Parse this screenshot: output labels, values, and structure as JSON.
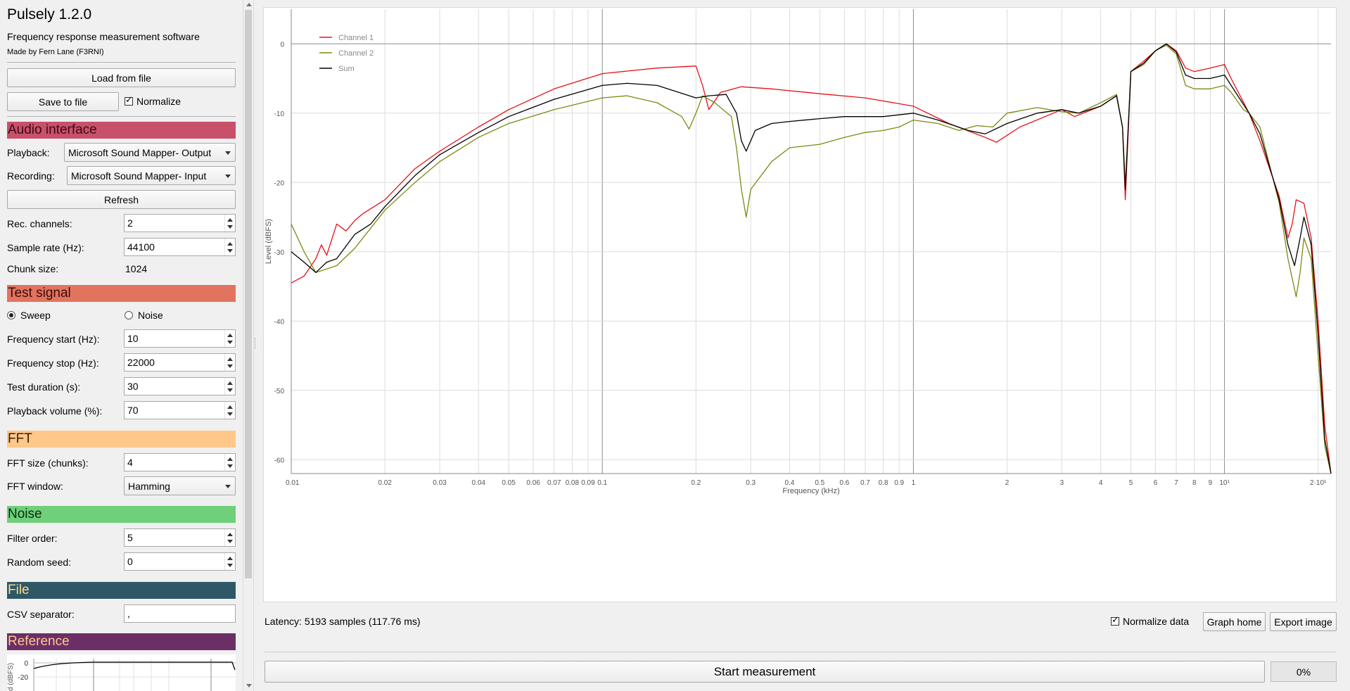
{
  "app": {
    "title": "Pulsely 1.2.0",
    "subtitle": "Frequency response measurement software",
    "author": "Made by Fern Lane (F3RNI)"
  },
  "file_buttons": {
    "load": "Load from file",
    "save": "Save to file",
    "normalize_label": "Normalize",
    "normalize_checked": true
  },
  "audio_interface": {
    "header": "Audio interface",
    "header_color": "#c9506a",
    "playback_label": "Playback:",
    "playback_value": "Microsoft Sound Mapper- Output",
    "recording_label": "Recording:",
    "recording_value": "Microsoft Sound Mapper- Input",
    "refresh": "Refresh",
    "rec_channels_label": "Rec. channels:",
    "rec_channels_value": "2",
    "sample_rate_label": "Sample rate (Hz):",
    "sample_rate_value": "44100",
    "chunk_size_label": "Chunk size:",
    "chunk_size_value": "1024"
  },
  "test_signal": {
    "header": "Test signal",
    "header_color": "#e2735e",
    "sweep_label": "Sweep",
    "noise_label": "Noise",
    "selected": "Sweep",
    "freq_start_label": "Frequency start (Hz):",
    "freq_start_value": "10",
    "freq_stop_label": "Frequency stop (Hz):",
    "freq_stop_value": "22000",
    "duration_label": "Test duration (s):",
    "duration_value": "30",
    "volume_label": "Playback volume (%):",
    "volume_value": "70"
  },
  "fft": {
    "header": "FFT",
    "header_color": "#ffc78a",
    "size_label": "FFT size (chunks):",
    "size_value": "4",
    "window_label": "FFT window:",
    "window_value": "Hamming"
  },
  "noise": {
    "header": "Noise",
    "header_color": "#6fcf7a",
    "filter_label": "Filter order:",
    "filter_value": "5",
    "seed_label": "Random seed:",
    "seed_value": "0"
  },
  "file_section": {
    "header": "File",
    "header_color": "#2e5867",
    "header_text_color": "#ffd98a",
    "csv_label": "CSV separator:",
    "csv_value": ","
  },
  "reference": {
    "header": "Reference",
    "header_color": "#6b2f66",
    "header_text_color": "#ffc78a",
    "ylabel": "d (dBFS)",
    "tick_0": "0",
    "tick_20": "-20"
  },
  "bottom": {
    "latency": "Latency: 5193 samples (117.76 ms)",
    "normalize_data": "Normalize data",
    "normalize_data_checked": true,
    "graph_home": "Graph home",
    "export_image": "Export image",
    "start": "Start measurement",
    "progress": "0%",
    "progress_value": 0
  },
  "chart_data": {
    "type": "line",
    "xlabel": "Frequency (kHz)",
    "ylabel": "Level (dBFS)",
    "x_scale": "log",
    "xlim": [
      0.01,
      22
    ],
    "ylim": [
      -62,
      5
    ],
    "grid": true,
    "legend_position": "top-left",
    "x_tick_labels": [
      {
        "x": 0.01,
        "label": "0.01"
      },
      {
        "x": 0.02,
        "label": "0.02"
      },
      {
        "x": 0.03,
        "label": "0.03"
      },
      {
        "x": 0.04,
        "label": "0.04"
      },
      {
        "x": 0.05,
        "label": "0.05"
      },
      {
        "x": 0.06,
        "label": "0.06"
      },
      {
        "x": 0.07,
        "label": "0.07"
      },
      {
        "x": 0.08,
        "label": "0.08"
      },
      {
        "x": 0.09,
        "label": "0.09"
      },
      {
        "x": 0.1,
        "label": "0.1"
      },
      {
        "x": 0.2,
        "label": "0.2"
      },
      {
        "x": 0.3,
        "label": "0.3"
      },
      {
        "x": 0.4,
        "label": "0.4"
      },
      {
        "x": 0.5,
        "label": "0.5"
      },
      {
        "x": 0.6,
        "label": "0.6"
      },
      {
        "x": 0.7,
        "label": "0.7"
      },
      {
        "x": 0.8,
        "label": "0.8"
      },
      {
        "x": 0.9,
        "label": "0.9"
      },
      {
        "x": 1,
        "label": "1"
      },
      {
        "x": 2,
        "label": "2"
      },
      {
        "x": 3,
        "label": "3"
      },
      {
        "x": 4,
        "label": "4"
      },
      {
        "x": 5,
        "label": "5"
      },
      {
        "x": 6,
        "label": "6"
      },
      {
        "x": 7,
        "label": "7"
      },
      {
        "x": 8,
        "label": "8"
      },
      {
        "x": 9,
        "label": "9"
      },
      {
        "x": 10,
        "label": "10¹"
      },
      {
        "x": 20,
        "label": "2·10¹"
      }
    ],
    "y_ticks": [
      0,
      -10,
      -20,
      -30,
      -40,
      -50,
      -60
    ],
    "series": [
      {
        "name": "Channel 1",
        "color": "#e8101a",
        "points": [
          [
            0.01,
            -34.5
          ],
          [
            0.011,
            -33.5
          ],
          [
            0.012,
            -31
          ],
          [
            0.0125,
            -29
          ],
          [
            0.013,
            -30.5
          ],
          [
            0.014,
            -26
          ],
          [
            0.015,
            -27
          ],
          [
            0.016,
            -25.5
          ],
          [
            0.017,
            -24.5
          ],
          [
            0.02,
            -22.5
          ],
          [
            0.025,
            -18
          ],
          [
            0.03,
            -15.5
          ],
          [
            0.04,
            -12
          ],
          [
            0.05,
            -9.5
          ],
          [
            0.07,
            -6.5
          ],
          [
            0.1,
            -4.3
          ],
          [
            0.15,
            -3.5
          ],
          [
            0.2,
            -3.2
          ],
          [
            0.21,
            -6
          ],
          [
            0.22,
            -9.5
          ],
          [
            0.24,
            -7
          ],
          [
            0.28,
            -6.2
          ],
          [
            0.35,
            -6.5
          ],
          [
            0.5,
            -7.2
          ],
          [
            0.7,
            -7.8
          ],
          [
            1,
            -9
          ],
          [
            1.3,
            -11.5
          ],
          [
            1.7,
            -13.5
          ],
          [
            1.85,
            -14.2
          ],
          [
            2.2,
            -12
          ],
          [
            3,
            -9.5
          ],
          [
            3.3,
            -10.5
          ],
          [
            4,
            -9
          ],
          [
            4.5,
            -7.5
          ],
          [
            4.7,
            -12
          ],
          [
            4.8,
            -22.5
          ],
          [
            5,
            -4
          ],
          [
            5.5,
            -2.5
          ],
          [
            6,
            -1
          ],
          [
            6.5,
            0
          ],
          [
            7,
            -1
          ],
          [
            7.5,
            -3.5
          ],
          [
            8,
            -4
          ],
          [
            9,
            -3.5
          ],
          [
            10,
            -3
          ],
          [
            10.5,
            -5
          ],
          [
            12,
            -10
          ],
          [
            13,
            -14
          ],
          [
            15,
            -22
          ],
          [
            16,
            -28
          ],
          [
            16.5,
            -26
          ],
          [
            17,
            -22.5
          ],
          [
            18,
            -23
          ],
          [
            19,
            -28
          ],
          [
            20,
            -40
          ],
          [
            21,
            -55
          ],
          [
            22,
            -62
          ]
        ]
      },
      {
        "name": "Channel 2",
        "color": "#7d8a10",
        "points": [
          [
            0.01,
            -26
          ],
          [
            0.011,
            -30
          ],
          [
            0.012,
            -33
          ],
          [
            0.014,
            -32
          ],
          [
            0.016,
            -29.5
          ],
          [
            0.02,
            -24
          ],
          [
            0.025,
            -20
          ],
          [
            0.03,
            -17
          ],
          [
            0.04,
            -13.5
          ],
          [
            0.05,
            -11.5
          ],
          [
            0.07,
            -9.5
          ],
          [
            0.1,
            -7.8
          ],
          [
            0.12,
            -7.5
          ],
          [
            0.15,
            -8.5
          ],
          [
            0.18,
            -10.5
          ],
          [
            0.19,
            -12.3
          ],
          [
            0.2,
            -10
          ],
          [
            0.21,
            -7.5
          ],
          [
            0.23,
            -8.5
          ],
          [
            0.26,
            -10.5
          ],
          [
            0.27,
            -15
          ],
          [
            0.28,
            -21
          ],
          [
            0.29,
            -25
          ],
          [
            0.3,
            -21
          ],
          [
            0.35,
            -17
          ],
          [
            0.4,
            -15
          ],
          [
            0.5,
            -14.5
          ],
          [
            0.6,
            -13.5
          ],
          [
            0.7,
            -12.8
          ],
          [
            0.8,
            -12.5
          ],
          [
            0.9,
            -12
          ],
          [
            1,
            -11
          ],
          [
            1.2,
            -11.5
          ],
          [
            1.4,
            -12.5
          ],
          [
            1.6,
            -11.8
          ],
          [
            1.8,
            -12
          ],
          [
            2,
            -10
          ],
          [
            2.5,
            -9.2
          ],
          [
            3,
            -9.8
          ],
          [
            3.4,
            -10
          ],
          [
            4,
            -8.5
          ],
          [
            4.5,
            -7.3
          ],
          [
            4.7,
            -12
          ],
          [
            4.8,
            -20.5
          ],
          [
            5,
            -4
          ],
          [
            5.5,
            -3
          ],
          [
            6,
            -1
          ],
          [
            6.5,
            -0.2
          ],
          [
            7,
            -1.5
          ],
          [
            7.5,
            -6
          ],
          [
            8,
            -6.5
          ],
          [
            9,
            -6.5
          ],
          [
            10,
            -6
          ],
          [
            10.5,
            -7
          ],
          [
            11.5,
            -9.5
          ],
          [
            12,
            -10
          ],
          [
            13,
            -12
          ],
          [
            15,
            -23
          ],
          [
            16,
            -31
          ],
          [
            17,
            -36.5
          ],
          [
            17.5,
            -33
          ],
          [
            18,
            -28
          ],
          [
            19,
            -31
          ],
          [
            20,
            -45
          ],
          [
            21,
            -58
          ],
          [
            22,
            -62
          ]
        ]
      },
      {
        "name": "Sum",
        "color": "#000000",
        "points": [
          [
            0.01,
            -30
          ],
          [
            0.011,
            -31.5
          ],
          [
            0.012,
            -33
          ],
          [
            0.013,
            -31.5
          ],
          [
            0.014,
            -31
          ],
          [
            0.016,
            -27.5
          ],
          [
            0.018,
            -26
          ],
          [
            0.02,
            -23.5
          ],
          [
            0.025,
            -19
          ],
          [
            0.03,
            -16
          ],
          [
            0.04,
            -12.8
          ],
          [
            0.05,
            -10.5
          ],
          [
            0.07,
            -8
          ],
          [
            0.1,
            -6
          ],
          [
            0.12,
            -5.7
          ],
          [
            0.15,
            -6
          ],
          [
            0.2,
            -7.8
          ],
          [
            0.22,
            -7.5
          ],
          [
            0.25,
            -7.3
          ],
          [
            0.27,
            -10
          ],
          [
            0.28,
            -14
          ],
          [
            0.29,
            -15.5
          ],
          [
            0.31,
            -12.5
          ],
          [
            0.35,
            -11.5
          ],
          [
            0.4,
            -11.2
          ],
          [
            0.5,
            -10.8
          ],
          [
            0.6,
            -10.5
          ],
          [
            0.7,
            -10.5
          ],
          [
            0.8,
            -10.5
          ],
          [
            1,
            -10
          ],
          [
            1.2,
            -11
          ],
          [
            1.5,
            -12.5
          ],
          [
            1.7,
            -13
          ],
          [
            2,
            -11.5
          ],
          [
            2.5,
            -10
          ],
          [
            3,
            -9.5
          ],
          [
            3.4,
            -10
          ],
          [
            4,
            -9
          ],
          [
            4.5,
            -7.5
          ],
          [
            4.7,
            -12
          ],
          [
            4.8,
            -21
          ],
          [
            5,
            -4
          ],
          [
            5.5,
            -2.8
          ],
          [
            6,
            -1
          ],
          [
            6.5,
            0
          ],
          [
            7,
            -1.2
          ],
          [
            7.5,
            -4.5
          ],
          [
            8,
            -5
          ],
          [
            9,
            -5
          ],
          [
            10,
            -4.5
          ],
          [
            10.5,
            -6
          ],
          [
            12,
            -10
          ],
          [
            13,
            -13
          ],
          [
            15,
            -22.5
          ],
          [
            16,
            -29
          ],
          [
            16.8,
            -32
          ],
          [
            17.5,
            -28
          ],
          [
            18,
            -25
          ],
          [
            19,
            -29
          ],
          [
            20,
            -42
          ],
          [
            21,
            -57
          ],
          [
            22,
            -62
          ]
        ]
      }
    ]
  }
}
